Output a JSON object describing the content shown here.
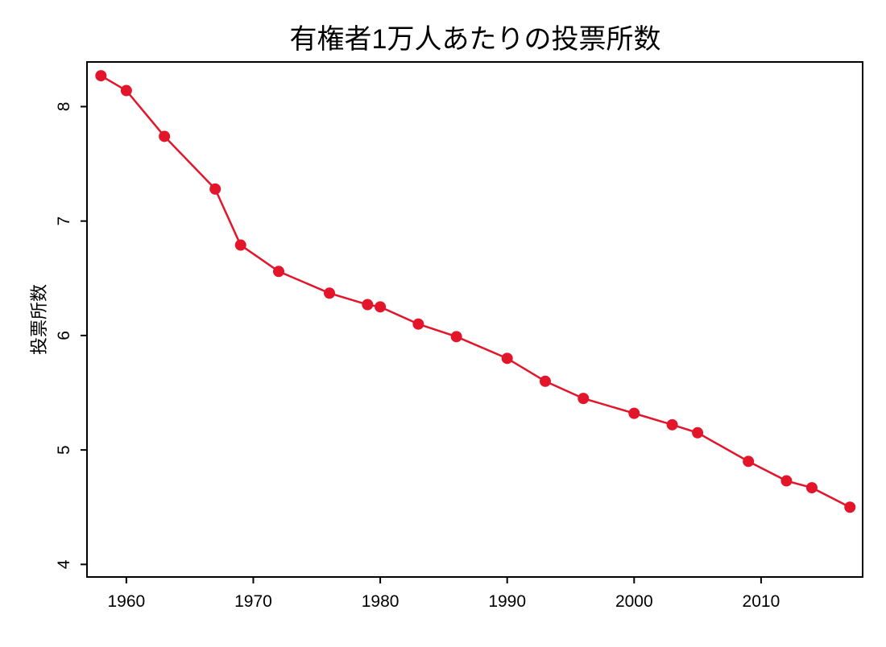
{
  "chart_data": {
    "type": "line",
    "title": "有権者1万人あたりの投票所数",
    "xlabel": "",
    "ylabel": "投票所数",
    "xlim": [
      1956.9,
      2018.0
    ],
    "ylim": [
      3.89,
      8.39
    ],
    "xticks": [
      1960,
      1970,
      1980,
      1990,
      2000,
      2010
    ],
    "yticks": [
      4,
      5,
      6,
      7,
      8
    ],
    "grid": false,
    "color": "#e3152b",
    "x": [
      1958,
      1960,
      1963,
      1967,
      1969,
      1972,
      1976,
      1979,
      1980,
      1983,
      1986,
      1990,
      1993,
      1996,
      2000,
      2003,
      2005,
      2009,
      2012,
      2014,
      2017
    ],
    "values": [
      8.27,
      8.14,
      7.74,
      7.28,
      6.79,
      6.56,
      6.37,
      6.27,
      6.25,
      6.1,
      5.99,
      5.8,
      5.6,
      5.45,
      5.32,
      5.22,
      5.15,
      4.9,
      4.73,
      4.67,
      4.5
    ]
  }
}
